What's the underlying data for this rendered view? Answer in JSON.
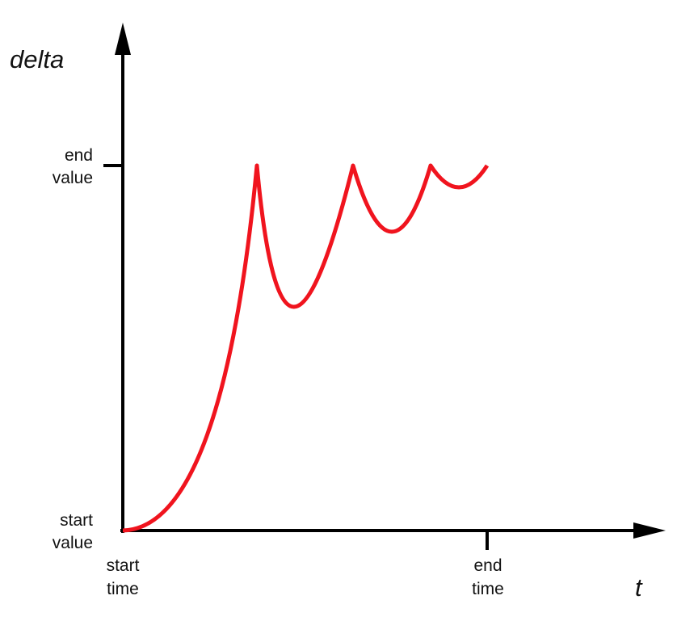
{
  "y_axis": {
    "title": "delta",
    "top_label": [
      "end",
      "value"
    ],
    "bottom_label": [
      "start",
      "value"
    ]
  },
  "x_axis": {
    "title": "t",
    "left_label": [
      "start",
      "time"
    ],
    "right_label": [
      "end",
      "time"
    ]
  }
}
